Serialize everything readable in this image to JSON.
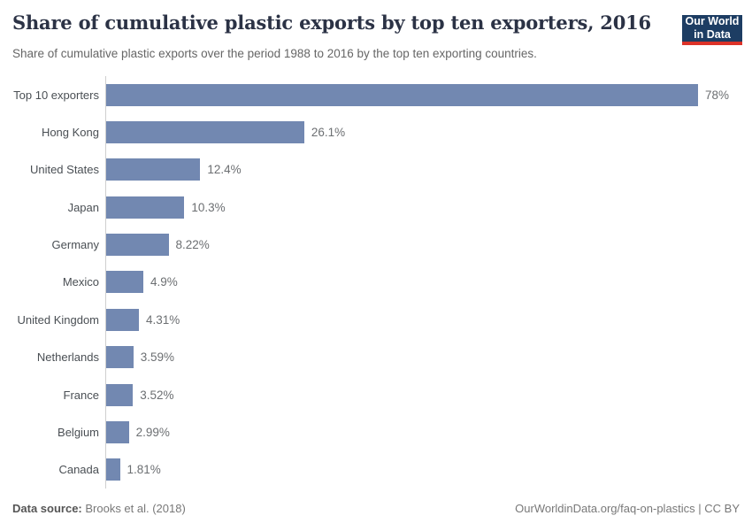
{
  "header": {
    "title": "Share of cumulative plastic exports by top ten exporters, 2016",
    "subtitle": "Share of cumulative plastic exports over the period 1988 to 2016 by the top ten exporting countries.",
    "logo_line1": "Our World",
    "logo_line2": "in Data"
  },
  "footer": {
    "data_source_label": "Data source:",
    "data_source_value": " Brooks et al. (2018)",
    "right_text": "OurWorldinData.org/faq-on-plastics | CC BY"
  },
  "colors": {
    "bar": "#7288b1",
    "logo_background": "#1d3d63",
    "logo_accent_red": "#dc3228",
    "title_text": "#2b3245",
    "axis_line": "#cfcfcf"
  },
  "chart_data": {
    "type": "bar",
    "orientation": "horizontal",
    "title": "Share of cumulative plastic exports by top ten exporters, 2016",
    "subtitle": "Share of cumulative plastic exports over the period 1988 to 2016 by the top ten exporting countries.",
    "categories": [
      "Top 10 exporters",
      "Hong Kong",
      "United States",
      "Japan",
      "Germany",
      "Mexico",
      "United Kingdom",
      "Netherlands",
      "France",
      "Belgium",
      "Canada"
    ],
    "values": [
      78,
      26.1,
      12.4,
      10.3,
      8.22,
      4.9,
      4.31,
      3.59,
      3.52,
      2.99,
      1.81
    ],
    "value_labels": [
      "78%",
      "26.1%",
      "12.4%",
      "10.3%",
      "8.22%",
      "4.9%",
      "4.31%",
      "3.59%",
      "3.52%",
      "2.99%",
      "1.81%"
    ],
    "xlabel": "",
    "ylabel": "",
    "xlim": [
      0,
      78
    ],
    "grid": false,
    "legend": false,
    "unit": "%"
  }
}
